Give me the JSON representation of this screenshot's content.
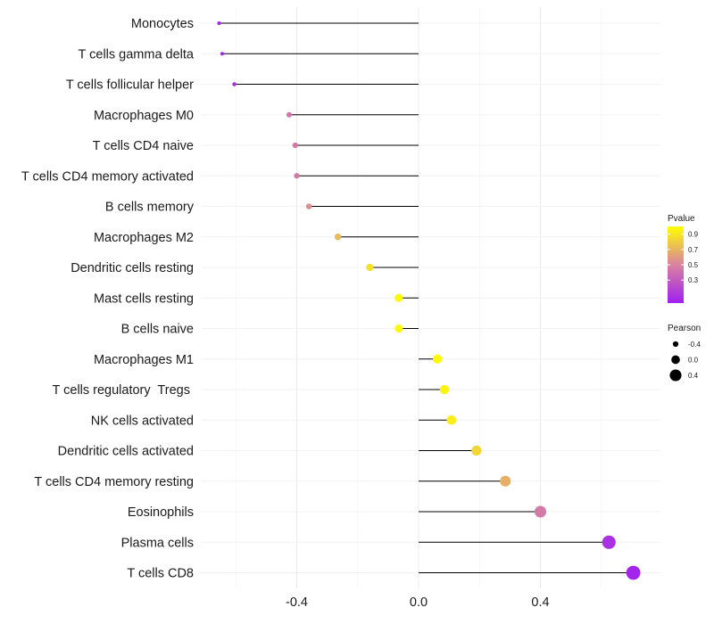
{
  "chart_data": {
    "type": "lollipop",
    "title": "",
    "xlabel": "",
    "ylabel": "",
    "xlim": [
      -0.66,
      0.76
    ],
    "xticks": [
      -0.4,
      0.0,
      0.4
    ],
    "xtick_labels": [
      "-0.4",
      "0.0",
      "0.4"
    ],
    "grid": true,
    "baseline": 0,
    "categories": [
      "Monocytes",
      "T cells gamma delta",
      "T cells follicular helper",
      "Macrophages M0",
      "T cells CD4 naive",
      "T cells CD4 memory activated",
      "B cells memory",
      "Macrophages M2",
      "Dendritic cells resting",
      "Mast cells resting",
      "B cells naive",
      "Macrophages M1",
      "T cells regulatory  Tregs ",
      "NK cells activated",
      "Dendritic cells activated",
      "T cells CD4 memory resting",
      "Eosinophils",
      "Plasma cells",
      "T cells CD8"
    ],
    "pearson": [
      -0.655,
      -0.645,
      -0.605,
      -0.425,
      -0.405,
      -0.4,
      -0.36,
      -0.265,
      -0.16,
      -0.065,
      -0.065,
      0.062,
      0.085,
      0.108,
      0.19,
      0.285,
      0.4,
      0.625,
      0.705
    ],
    "pvalue": [
      0.02,
      0.03,
      0.05,
      0.43,
      0.45,
      0.46,
      0.55,
      0.72,
      0.88,
      0.98,
      0.98,
      0.98,
      0.95,
      0.93,
      0.83,
      0.68,
      0.46,
      0.08,
      0.02
    ],
    "color_legend": {
      "title": "Pvalue",
      "ticks": [
        "0.9",
        "0.7",
        "0.5",
        "0.3"
      ],
      "tick_values": [
        0.9,
        0.7,
        0.5,
        0.3
      ],
      "range": [
        0.0,
        1.0
      ],
      "low_color": "#a020f0",
      "mid_color": "#d982a0",
      "high_color": "#ffff00"
    },
    "size_legend": {
      "title": "Pearson",
      "ticks": [
        "-0.4",
        "0.0",
        "0.4"
      ],
      "tick_values": [
        -0.4,
        0.0,
        0.4
      ]
    }
  }
}
